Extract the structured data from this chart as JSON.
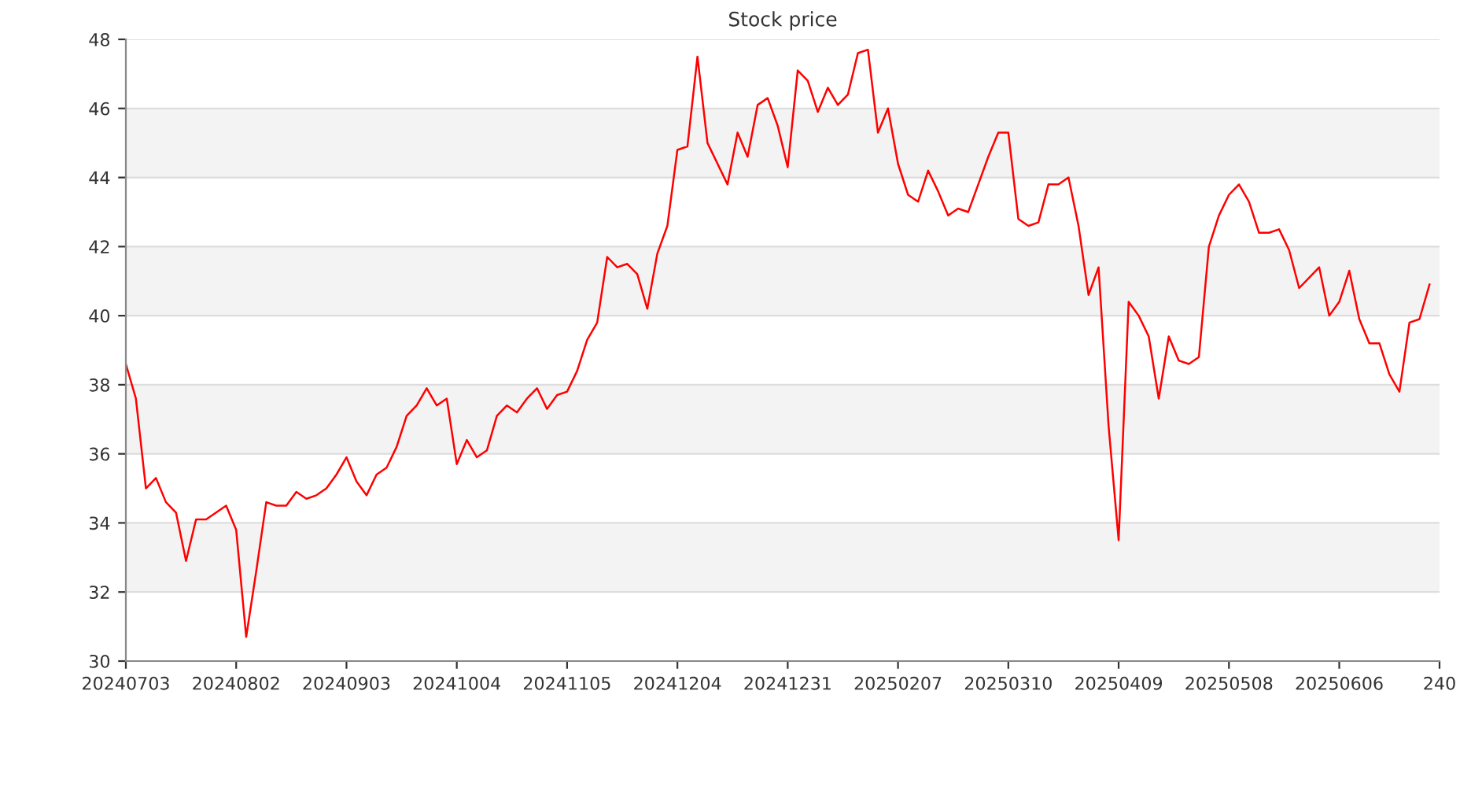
{
  "chart_data": {
    "type": "line",
    "title": "Stock price",
    "categories": [
      "20240703",
      null,
      null,
      null,
      null,
      null,
      null,
      null,
      null,
      null,
      null,
      "20240802",
      null,
      null,
      null,
      null,
      null,
      null,
      null,
      null,
      null,
      null,
      "20240903",
      null,
      null,
      null,
      null,
      null,
      null,
      null,
      null,
      null,
      null,
      "20241004",
      null,
      null,
      null,
      null,
      null,
      null,
      null,
      null,
      null,
      null,
      "20241105",
      null,
      null,
      null,
      null,
      null,
      null,
      null,
      null,
      null,
      null,
      "20241204",
      null,
      null,
      null,
      null,
      null,
      null,
      null,
      null,
      null,
      null,
      "20241231",
      null,
      null,
      null,
      null,
      null,
      null,
      null,
      null,
      null,
      null,
      "20250207",
      null,
      null,
      null,
      null,
      null,
      null,
      null,
      null,
      null,
      null,
      "20250310",
      null,
      null,
      null,
      null,
      null,
      null,
      null,
      null,
      null,
      null,
      "20250409",
      null,
      null,
      null,
      null,
      null,
      null,
      null,
      null,
      null,
      null,
      "20250508",
      null,
      null,
      null,
      null,
      null,
      null,
      null,
      null,
      null,
      null,
      "20250606",
      null,
      null,
      null,
      null,
      null,
      null,
      null,
      null,
      null,
      "240"
    ],
    "series": [
      {
        "color": "#ff0000",
        "values": [
          38.6,
          37.6,
          35.0,
          35.3,
          34.6,
          34.3,
          32.9,
          34.1,
          34.1,
          34.3,
          34.5,
          33.8,
          30.7,
          32.6,
          34.6,
          34.5,
          34.5,
          34.9,
          34.7,
          34.8,
          35.0,
          35.4,
          35.9,
          35.2,
          34.8,
          35.4,
          35.6,
          36.2,
          37.1,
          37.4,
          37.9,
          37.4,
          37.6,
          35.7,
          36.4,
          35.9,
          36.1,
          37.1,
          37.4,
          37.2,
          37.6,
          37.9,
          37.3,
          37.7,
          37.8,
          38.4,
          39.3,
          39.8,
          41.7,
          41.4,
          41.5,
          41.2,
          40.2,
          41.8,
          42.6,
          44.8,
          44.9,
          47.5,
          45.0,
          44.4,
          43.8,
          45.3,
          44.6,
          46.1,
          46.3,
          45.5,
          44.3,
          47.1,
          46.8,
          45.9,
          46.6,
          46.1,
          46.4,
          47.6,
          47.7,
          45.3,
          46.0,
          44.4,
          43.5,
          43.3,
          44.2,
          43.6,
          42.9,
          43.1,
          43.0,
          43.8,
          44.6,
          45.3,
          45.3,
          42.8,
          42.6,
          42.7,
          43.8,
          43.8,
          44.0,
          42.6,
          40.6,
          41.4,
          36.8,
          33.5,
          40.4,
          40.0,
          39.4,
          37.6,
          39.4,
          38.7,
          38.6,
          38.8,
          42.0,
          42.9,
          43.5,
          43.8,
          43.3,
          42.4,
          42.4,
          42.5,
          41.9,
          40.8,
          41.1,
          41.4,
          40.0,
          40.4,
          41.3,
          39.9,
          39.2,
          39.2,
          38.3,
          37.8,
          39.8,
          39.9,
          40.9,
          null
        ]
      }
    ],
    "ylim": [
      30,
      48
    ],
    "yticks": [
      30,
      32,
      34,
      36,
      38,
      40,
      42,
      44,
      46,
      48
    ],
    "grid": "y",
    "legend": false,
    "marker": "none",
    "line_style": "solid"
  }
}
